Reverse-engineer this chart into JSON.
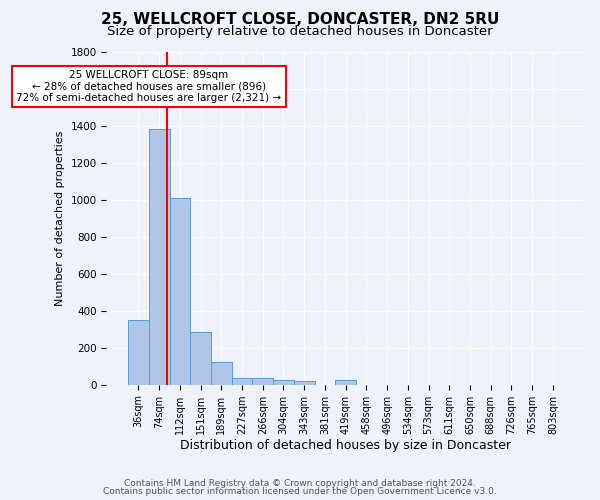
{
  "title": "25, WELLCROFT CLOSE, DONCASTER, DN2 5RU",
  "subtitle": "Size of property relative to detached houses in Doncaster",
  "xlabel": "Distribution of detached houses by size in Doncaster",
  "ylabel": "Number of detached properties",
  "categories": [
    "36sqm",
    "74sqm",
    "112sqm",
    "151sqm",
    "189sqm",
    "227sqm",
    "266sqm",
    "304sqm",
    "343sqm",
    "381sqm",
    "419sqm",
    "458sqm",
    "496sqm",
    "534sqm",
    "573sqm",
    "611sqm",
    "650sqm",
    "688sqm",
    "726sqm",
    "765sqm",
    "803sqm"
  ],
  "values": [
    350,
    1380,
    1010,
    285,
    125,
    38,
    35,
    25,
    18,
    0,
    28,
    0,
    0,
    0,
    0,
    0,
    0,
    0,
    0,
    0,
    0
  ],
  "bar_color": "#aec6e8",
  "bar_edge_color": "#5b9bd5",
  "property_sqm": 89,
  "bin_min": 74,
  "bin_max": 112,
  "annotation_text_line1": "25 WELLCROFT CLOSE: 89sqm",
  "annotation_text_line2": "← 28% of detached houses are smaller (896)",
  "annotation_text_line3": "72% of semi-detached houses are larger (2,321) →",
  "annotation_box_color": "white",
  "annotation_box_edge_color": "red",
  "vline_color": "red",
  "ylim": [
    0,
    1800
  ],
  "yticks": [
    0,
    200,
    400,
    600,
    800,
    1000,
    1200,
    1400,
    1600,
    1800
  ],
  "footnote_line1": "Contains HM Land Registry data © Crown copyright and database right 2024.",
  "footnote_line2": "Contains public sector information licensed under the Open Government Licence v3.0.",
  "bg_color": "#eef2fa",
  "plot_bg_color": "#eef2fa",
  "grid_color": "white",
  "title_fontsize": 11,
  "subtitle_fontsize": 9.5,
  "xlabel_fontsize": 9,
  "ylabel_fontsize": 8,
  "footnote_fontsize": 6.5,
  "tick_fontsize": 7,
  "ytick_fontsize": 7.5,
  "annotation_fontsize": 7.5
}
